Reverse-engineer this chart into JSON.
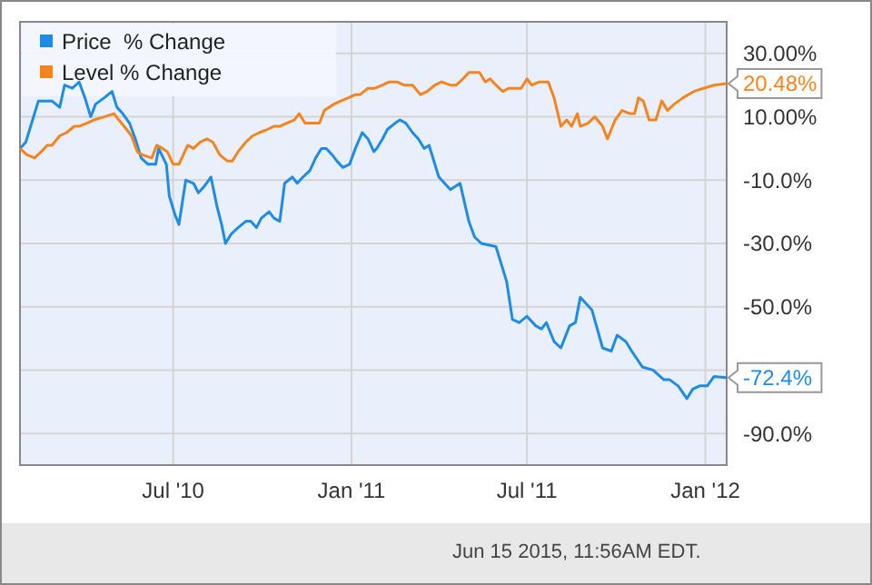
{
  "chart_data": {
    "type": "line",
    "legend": "top left",
    "grid": true,
    "marker": "none",
    "line_style": "solid",
    "xlim": [
      "2010-01-24",
      "2012-01-23"
    ],
    "xticks": [
      {
        "value": "2010-07-01",
        "label": "Jul '10"
      },
      {
        "value": "2011-01-01",
        "label": "Jan '11"
      },
      {
        "value": "2011-07-01",
        "label": "Jul '11"
      },
      {
        "value": "2012-01-01",
        "label": "Jan '12"
      }
    ],
    "ylim": [
      -100,
      40
    ],
    "yticks": [
      {
        "value": 30,
        "label": "30.00%"
      },
      {
        "value": 10,
        "label": "10.00%"
      },
      {
        "value": -10,
        "label": "-10.0%"
      },
      {
        "value": -30,
        "label": "-30.0%"
      },
      {
        "value": -50,
        "label": "-50.0%"
      },
      {
        "value": -70,
        "label": null
      },
      {
        "value": -90,
        "label": "-90.0%"
      }
    ],
    "annotations": [
      {
        "text": "20.48%",
        "x": "2012-01-23",
        "y": 20.48
      },
      {
        "text": "-72.4%",
        "x": "2012-01-23",
        "y": -72.4
      },
      "Jun 15 2015, 11:56AM EDT."
    ],
    "series": [
      {
        "name": "Price  % Change",
        "color": "#1e8be6",
        "x": [
          "2010-01-24",
          "2010-01-30",
          "2010-02-06",
          "2010-02-12",
          "2010-02-21",
          "2010-02-26",
          "2010-03-06",
          "2010-03-11",
          "2010-03-19",
          "2010-03-26",
          "2010-04-01",
          "2010-04-07",
          "2010-04-12",
          "2010-04-21",
          "2010-04-29",
          "2010-05-04",
          "2010-05-10",
          "2010-05-17",
          "2010-05-23",
          "2010-05-29",
          "2010-06-05",
          "2010-06-13",
          "2010-06-16",
          "2010-06-24",
          "2010-06-27",
          "2010-07-03",
          "2010-07-07",
          "2010-07-14",
          "2010-07-22",
          "2010-07-27",
          "2010-08-02",
          "2010-08-09",
          "2010-08-15",
          "2010-08-20",
          "2010-08-24",
          "2010-08-30",
          "2010-09-06",
          "2010-09-14",
          "2010-09-19",
          "2010-09-25",
          "2010-09-30",
          "2010-10-08",
          "2010-10-13",
          "2010-10-19",
          "2010-10-24",
          "2010-11-01",
          "2010-11-06",
          "2010-11-12",
          "2010-11-19",
          "2010-11-25",
          "2010-12-01",
          "2010-12-06",
          "2010-12-12",
          "2010-12-17",
          "2010-12-23",
          "2010-12-30",
          "2011-01-05",
          "2011-01-12",
          "2011-01-18",
          "2011-01-24",
          "2011-01-27",
          "2011-02-02",
          "2011-02-07",
          "2011-02-15",
          "2011-02-20",
          "2011-02-26",
          "2011-03-05",
          "2011-03-11",
          "2011-03-17",
          "2011-03-22",
          "2011-04-01",
          "2011-04-13",
          "2011-04-23",
          "2011-05-02",
          "2011-05-08",
          "2011-05-15",
          "2011-05-30",
          "2011-06-05",
          "2011-06-10",
          "2011-06-16",
          "2011-06-23",
          "2011-07-01",
          "2011-07-10",
          "2011-07-16",
          "2011-07-21",
          "2011-07-29",
          "2011-08-05",
          "2011-08-14",
          "2011-08-20",
          "2011-08-25",
          "2011-08-31",
          "2011-09-06",
          "2011-09-17",
          "2011-09-26",
          "2011-10-02",
          "2011-10-11",
          "2011-10-17",
          "2011-10-28",
          "2011-11-08",
          "2011-11-19",
          "2011-11-25",
          "2011-12-04",
          "2011-12-13",
          "2011-12-19",
          "2011-12-26",
          "2012-01-03",
          "2012-01-10",
          "2012-01-23"
        ],
        "values": [
          0,
          2,
          9,
          15,
          15,
          15,
          13,
          20,
          19,
          21,
          16,
          10,
          14,
          16,
          18,
          13,
          11,
          8,
          3,
          -3,
          -5,
          -5,
          0,
          -5,
          -15,
          -21,
          -24,
          -10,
          -11,
          -14,
          -12,
          -9,
          -18,
          -24,
          -30,
          -27,
          -25,
          -23,
          -23,
          -25,
          -22,
          -20,
          -22,
          -23,
          -11,
          -9,
          -11,
          -9,
          -7,
          -3,
          0,
          0,
          -2,
          -4,
          -6,
          -5,
          0,
          5,
          3,
          -1,
          0,
          3,
          6,
          8,
          9,
          8,
          5,
          3,
          0,
          1,
          -9,
          -13,
          -11,
          -23,
          -28,
          -30,
          -31,
          -37,
          -42,
          -54,
          -55,
          -53,
          -56,
          -57,
          -55,
          -61,
          -63,
          -56,
          -55,
          -47,
          -49,
          -51,
          -63,
          -64,
          -59,
          -61,
          -64,
          -69,
          -70,
          -73,
          -73,
          -75,
          -79,
          -76,
          -75,
          -75,
          -72,
          -72.4
        ]
      },
      {
        "name": "Level % Change",
        "color": "#f5841f",
        "x": [
          "2010-01-24",
          "2010-01-31",
          "2010-02-08",
          "2010-02-15",
          "2010-02-21",
          "2010-02-26",
          "2010-03-06",
          "2010-03-13",
          "2010-03-21",
          "2010-03-26",
          "2010-04-03",
          "2010-04-10",
          "2010-04-21",
          "2010-05-01",
          "2010-05-06",
          "2010-05-14",
          "2010-05-19",
          "2010-05-25",
          "2010-05-30",
          "2010-06-09",
          "2010-06-14",
          "2010-06-20",
          "2010-06-25",
          "2010-07-01",
          "2010-07-07",
          "2010-07-10",
          "2010-07-16",
          "2010-07-22",
          "2010-07-29",
          "2010-08-05",
          "2010-08-11",
          "2010-08-18",
          "2010-08-26",
          "2010-08-31",
          "2010-09-06",
          "2010-09-14",
          "2010-09-21",
          "2010-09-28",
          "2010-10-06",
          "2010-10-13",
          "2010-10-19",
          "2010-10-26",
          "2010-11-03",
          "2010-11-08",
          "2010-11-14",
          "2010-11-21",
          "2010-11-29",
          "2010-12-04",
          "2010-12-14",
          "2010-12-21",
          "2010-12-29",
          "2011-01-05",
          "2011-01-10",
          "2011-01-18",
          "2011-01-25",
          "2011-02-02",
          "2011-02-09",
          "2011-02-17",
          "2011-02-24",
          "2011-03-05",
          "2011-03-13",
          "2011-03-20",
          "2011-03-28",
          "2011-04-04",
          "2011-04-13",
          "2011-04-19",
          "2011-04-26",
          "2011-05-02",
          "2011-05-08",
          "2011-05-13",
          "2011-05-19",
          "2011-05-24",
          "2011-05-30",
          "2011-06-06",
          "2011-06-12",
          "2011-06-25",
          "2011-07-01",
          "2011-07-06",
          "2011-07-14",
          "2011-07-23",
          "2011-07-29",
          "2011-08-05",
          "2011-08-11",
          "2011-08-16",
          "2011-08-22",
          "2011-08-25",
          "2011-09-02",
          "2011-09-09",
          "2011-09-17",
          "2011-09-22",
          "2011-09-30",
          "2011-10-07",
          "2011-10-15",
          "2011-10-20",
          "2011-10-24",
          "2011-10-29",
          "2011-11-04",
          "2011-11-11",
          "2011-11-17",
          "2011-11-23",
          "2011-11-30",
          "2011-12-09",
          "2011-12-20",
          "2011-12-30",
          "2012-01-10",
          "2012-01-23"
        ],
        "values": [
          0,
          -2,
          -3,
          -1,
          1,
          1,
          4,
          5,
          7,
          7,
          8,
          9,
          10,
          11,
          9,
          6,
          4,
          -1,
          -2,
          -3,
          1,
          0,
          -1,
          -5,
          -5,
          -3,
          1,
          0,
          2,
          3,
          2,
          -2,
          -4,
          -4,
          -1,
          2,
          4,
          5,
          6,
          7,
          7,
          8,
          9,
          11,
          8,
          8,
          8,
          12,
          14,
          15,
          16,
          17,
          17,
          19,
          19,
          20,
          21,
          21,
          20,
          20,
          17,
          18,
          20,
          21,
          20,
          20,
          22,
          24,
          24,
          24,
          21,
          22,
          20,
          18,
          19,
          19,
          22,
          20,
          21,
          21,
          16,
          7,
          9,
          7,
          11,
          7,
          8,
          10,
          7,
          3,
          9,
          12,
          11,
          11,
          16,
          15,
          9,
          9,
          15,
          12,
          14,
          16,
          18,
          19,
          20,
          20.48
        ]
      }
    ]
  }
}
